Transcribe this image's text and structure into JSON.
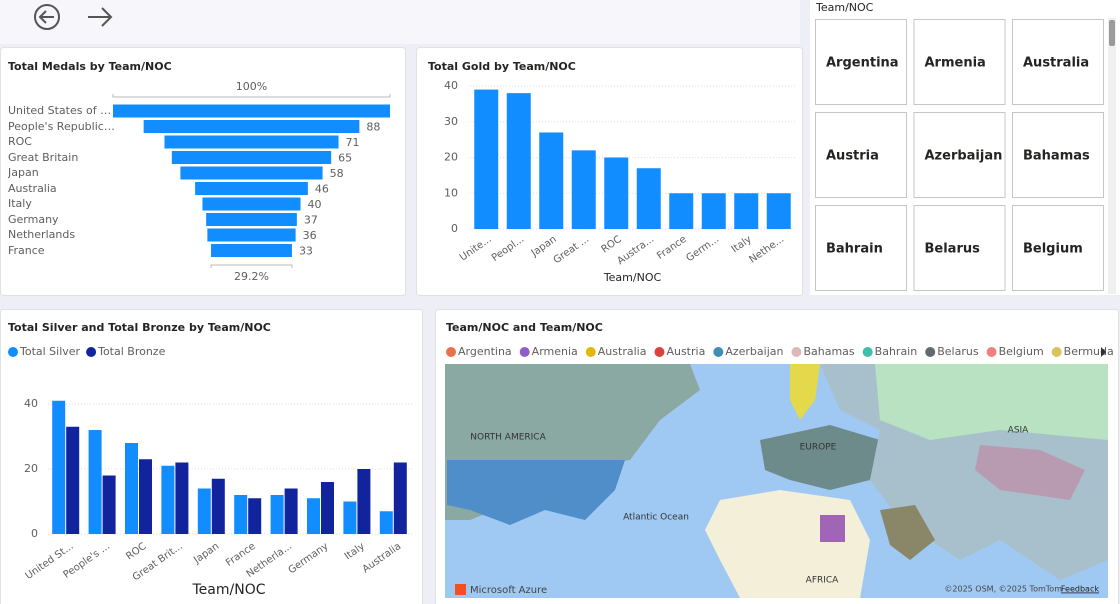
{
  "chart_data": [
    {
      "type": "funnel",
      "title": "Total Medals by Team/NOC",
      "categories": [
        "United States of America",
        "People's Republic of China",
        "ROC",
        "Great Britain",
        "Japan",
        "Australia",
        "Italy",
        "Germany",
        "Netherlands",
        "France"
      ],
      "values": [
        113,
        88,
        71,
        65,
        58,
        46,
        40,
        37,
        36,
        33
      ],
      "color": "#118dff",
      "top_label": "100%",
      "bottom_label": "29.2%"
    },
    {
      "type": "column",
      "title": "Total Gold by Team/NOC",
      "x_label": "Team/NOC",
      "categories": [
        "Unite...",
        "Peopl...",
        "Japan",
        "Great ...",
        "ROC",
        "Austra...",
        "France",
        "Germ...",
        "Italy",
        "Nethe..."
      ],
      "values": [
        39,
        38,
        27,
        22,
        20,
        17,
        10,
        10,
        10,
        10
      ],
      "color": "#118dff",
      "ylim": [
        0,
        40
      ],
      "yticks": [
        0,
        10,
        20,
        30,
        40
      ],
      "grid": true
    },
    {
      "type": "grouped_column",
      "title": "Total Silver and Total Bronze by Team/NOC",
      "x_label": "Team/NOC",
      "categories": [
        "United St...",
        "People's ...",
        "ROC",
        "Great Brit...",
        "Japan",
        "France",
        "Netherla...",
        "Germany",
        "Italy",
        "Australia"
      ],
      "series": [
        {
          "name": "Total Silver",
          "color": "#118dff",
          "values": [
            41,
            32,
            28,
            21,
            14,
            12,
            12,
            11,
            10,
            7
          ]
        },
        {
          "name": "Total Bronze",
          "color": "#12239e",
          "values": [
            33,
            18,
            23,
            22,
            17,
            11,
            14,
            16,
            20,
            22
          ]
        }
      ],
      "ylim": [
        0,
        44
      ],
      "yticks": [
        0,
        20,
        40
      ],
      "grid": true
    }
  ],
  "slicer": {
    "title": "Team/NOC",
    "items": [
      "Argentina",
      "Armenia",
      "Australia",
      "Austria",
      "Azerbaijan",
      "Bahamas",
      "Bahrain",
      "Belarus",
      "Belgium"
    ]
  },
  "map": {
    "title": "Team/NOC and Team/NOC",
    "legend": [
      {
        "name": "Argentina",
        "color": "#e8704d"
      },
      {
        "name": "Armenia",
        "color": "#8c5fc9"
      },
      {
        "name": "Australia",
        "color": "#e3b60b"
      },
      {
        "name": "Austria",
        "color": "#d9433b"
      },
      {
        "name": "Azerbaijan",
        "color": "#3f8fb5"
      },
      {
        "name": "Bahamas",
        "color": "#dcb9b9"
      },
      {
        "name": "Bahrain",
        "color": "#3fbfa7"
      },
      {
        "name": "Belarus",
        "color": "#5f6b6d"
      },
      {
        "name": "Belgium",
        "color": "#f08080"
      },
      {
        "name": "Bermuda",
        "color": "#d9c35a"
      }
    ],
    "labels": [
      "NORTH AMERICA",
      "EUROPE",
      "ASIA",
      "Atlantic Ocean",
      "AFRICA"
    ],
    "brand": "Microsoft Azure",
    "copyright": "©2025 OSM, ©2025 TomTom",
    "feedback": "Feedback"
  }
}
